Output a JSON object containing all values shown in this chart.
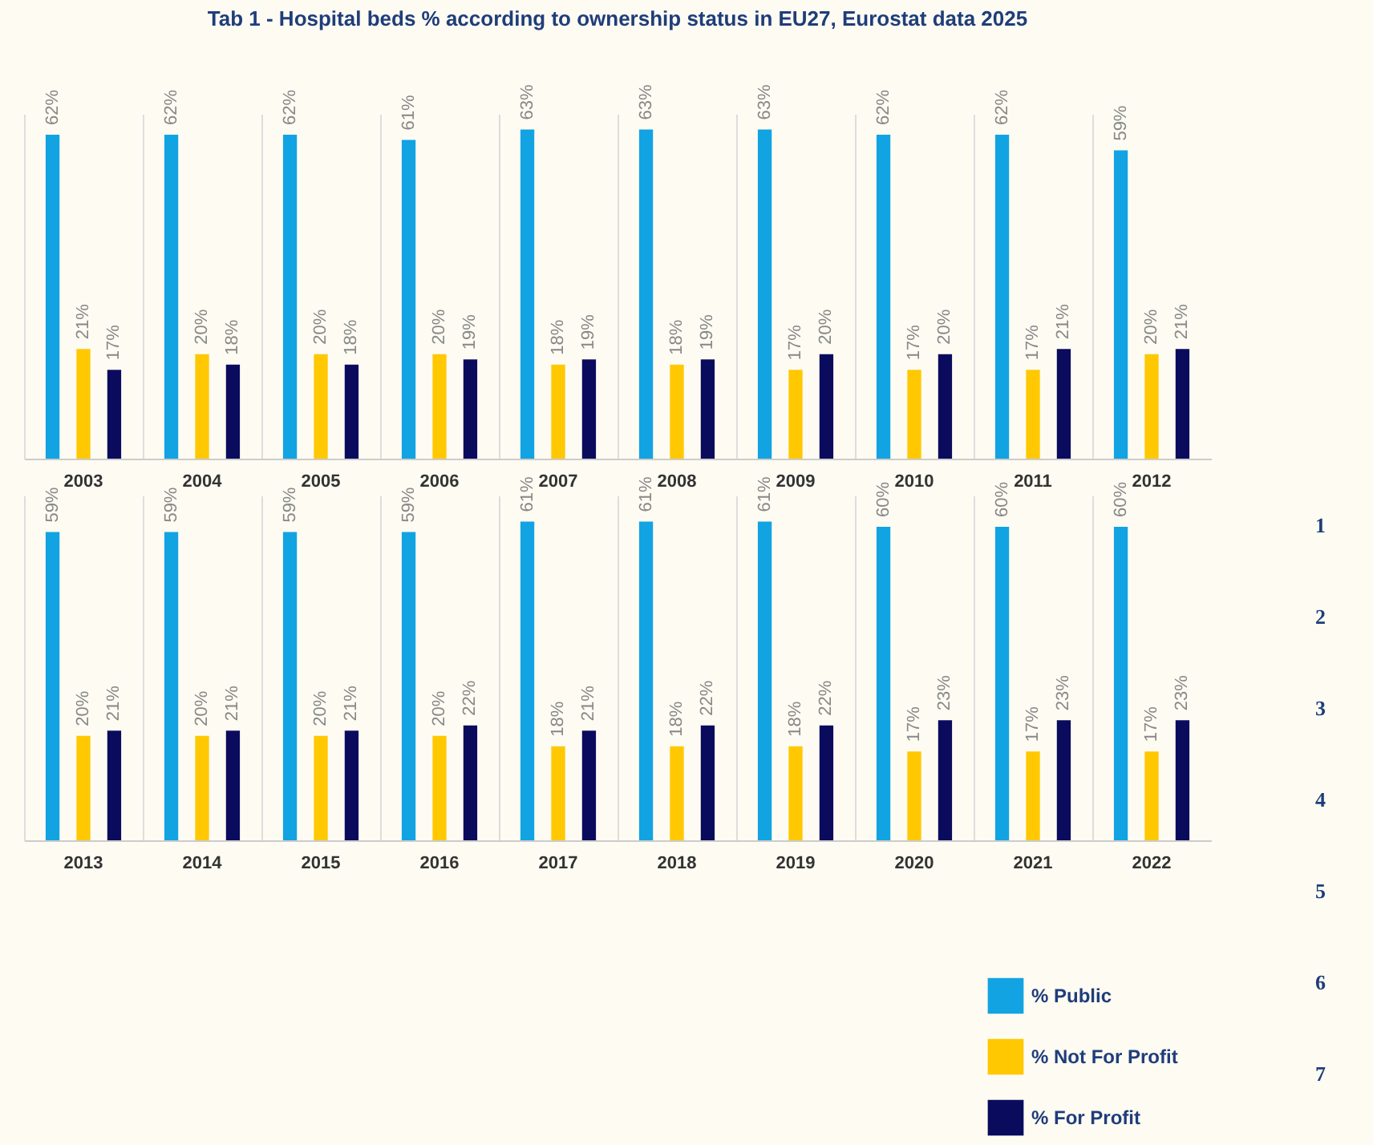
{
  "chart_data": [
    {
      "type": "bar",
      "title": "Tab 1 - Hospital beds % according to ownership status in EU27, Eurostat data 2025",
      "categories": [
        "2003",
        "2004",
        "2005",
        "2006",
        "2007",
        "2008",
        "2009",
        "2010",
        "2011",
        "2012"
      ],
      "grid": "x",
      "legend": false,
      "series": [
        {
          "color": "#12a3e3",
          "values": [
            62,
            62,
            62,
            61,
            63,
            63,
            63,
            62,
            62,
            59
          ],
          "value_labels": [
            "62%",
            "62%",
            "62%",
            "61%",
            "63%",
            "63%",
            "63%",
            "62%",
            "62%",
            "59%"
          ]
        },
        {
          "color": "#ffc800",
          "values": [
            21,
            20,
            20,
            20,
            18,
            18,
            17,
            17,
            17,
            20
          ],
          "value_labels": [
            "21%",
            "20%",
            "20%",
            "20%",
            "18%",
            "18%",
            "17%",
            "17%",
            "17%",
            "20%"
          ]
        },
        {
          "color": "#0b0b5e",
          "values": [
            17,
            18,
            18,
            19,
            19,
            19,
            20,
            20,
            21,
            21
          ],
          "value_labels": [
            "17%",
            "18%",
            "18%",
            "19%",
            "19%",
            "19%",
            "20%",
            "20%",
            "21%",
            "21%"
          ]
        }
      ]
    },
    {
      "type": "bar",
      "categories": [
        "2013",
        "2014",
        "2015",
        "2016",
        "2017",
        "2018",
        "2019",
        "2020",
        "2021",
        "2022"
      ],
      "grid": "x",
      "legend": "bottom right",
      "annotations": [
        "1",
        "2",
        "3",
        "4",
        "5",
        "6",
        "7"
      ],
      "series": [
        {
          "name": "% Public",
          "color": "#12a3e3",
          "values": [
            59,
            59,
            59,
            59,
            61,
            61,
            61,
            60,
            60,
            60
          ],
          "value_labels": [
            "59%",
            "59%",
            "59%",
            "59%",
            "61%",
            "61%",
            "61%",
            "60%",
            "60%",
            "60%"
          ]
        },
        {
          "name": "% Not For Profit",
          "color": "#ffc800",
          "values": [
            20,
            20,
            20,
            20,
            18,
            18,
            18,
            17,
            17,
            17
          ],
          "value_labels": [
            "20%",
            "20%",
            "20%",
            "20%",
            "18%",
            "18%",
            "18%",
            "17%",
            "17%",
            "17%"
          ]
        },
        {
          "name": "% For Profit",
          "color": "#0b0b5e",
          "values": [
            21,
            21,
            21,
            22,
            21,
            22,
            22,
            23,
            23,
            23
          ],
          "value_labels": [
            "21%",
            "21%",
            "21%",
            "22%",
            "21%",
            "22%",
            "22%",
            "23%",
            "23%",
            "23%"
          ]
        }
      ]
    }
  ]
}
